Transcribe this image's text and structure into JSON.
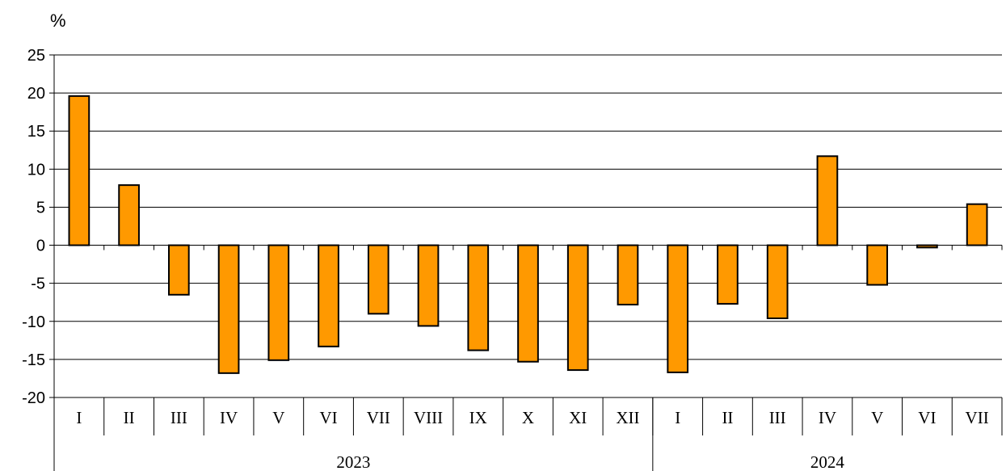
{
  "chart_data": {
    "type": "bar",
    "unit_label": "%",
    "title": "",
    "xlabel": "",
    "ylabel": "",
    "ylim": [
      -20,
      25
    ],
    "yticks": [
      25,
      20,
      15,
      10,
      5,
      0,
      -5,
      -10,
      -15,
      -20
    ],
    "grid": true,
    "bar_color": "#FF9900",
    "categories": [
      "I",
      "II",
      "III",
      "IV",
      "V",
      "VI",
      "VII",
      "VIII",
      "IX",
      "X",
      "XI",
      "XII",
      "I",
      "II",
      "III",
      "IV",
      "V",
      "VI",
      "VII"
    ],
    "groups": [
      {
        "label": "2023",
        "count": 12
      },
      {
        "label": "2024",
        "count": 7
      }
    ],
    "values": [
      19.6,
      7.9,
      -6.5,
      -16.8,
      -15.1,
      -13.3,
      -9.0,
      -10.6,
      -13.8,
      -15.3,
      -16.4,
      -7.8,
      -16.7,
      -7.7,
      -9.6,
      11.7,
      -5.2,
      -0.3,
      5.4
    ]
  }
}
